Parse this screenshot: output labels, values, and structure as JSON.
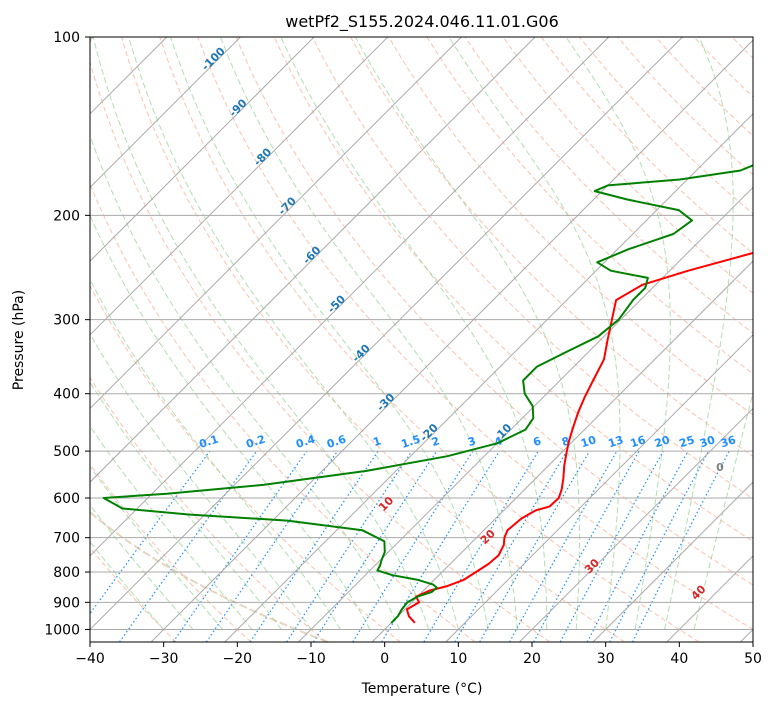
{
  "chart_data": {
    "type": "line",
    "title": "wetPf2_S155.2024.046.11.01.G06",
    "xlabel": "Temperature (°C)",
    "ylabel": "Pressure (hPa)",
    "xlim": [
      -40,
      50
    ],
    "ylim": [
      1050,
      100
    ],
    "y_scale": "log",
    "grid": true,
    "x_ticks": [
      -40,
      -30,
      -20,
      -10,
      0,
      10,
      20,
      30,
      40,
      50
    ],
    "x_tick_labels": [
      "−40",
      "−30",
      "−20",
      "−10",
      "0",
      "10",
      "20",
      "30",
      "40",
      "50"
    ],
    "y_ticks": [
      1000,
      900,
      800,
      700,
      600,
      500,
      400,
      300,
      200,
      100
    ],
    "y_tick_labels": [
      "1000",
      "900",
      "800",
      "700",
      "600",
      "500",
      "400",
      "300",
      "200",
      "100"
    ],
    "colors": {
      "temperature": "#ff0000",
      "dewpoint": "#008000",
      "isotherm": "#aaaaaa",
      "dry_adiabat": "#ff9f80",
      "moist_adiabat": "#8fd18f",
      "mixing_ratio": "#1f8fff",
      "lcl": "#d2b48c",
      "isotherm_label": "#1f77b4",
      "dry_adiabat_label": "#d62728",
      "moist_adiabat_label": "#7f7f7f"
    },
    "series": [
      {
        "key": "temperature",
        "points": [
          [
            3.2,
            975
          ],
          [
            1.5,
            950
          ],
          [
            0.3,
            925
          ],
          [
            1.0,
            900
          ],
          [
            -0.2,
            880
          ],
          [
            0.8,
            860
          ],
          [
            2.6,
            845
          ],
          [
            4.0,
            825
          ],
          [
            4.6,
            800
          ],
          [
            5.2,
            775
          ],
          [
            5.4,
            750
          ],
          [
            4.7,
            720
          ],
          [
            3.8,
            700
          ],
          [
            3.2,
            680
          ],
          [
            3.5,
            650
          ],
          [
            4.3,
            630
          ],
          [
            5.7,
            620
          ],
          [
            5.8,
            600
          ],
          [
            5.0,
            580
          ],
          [
            3.7,
            555
          ],
          [
            2.2,
            530
          ],
          [
            0.8,
            505
          ],
          [
            -0.6,
            480
          ],
          [
            -1.9,
            455
          ],
          [
            -3.2,
            430
          ],
          [
            -4.4,
            405
          ],
          [
            -5.5,
            380
          ],
          [
            -6.9,
            350
          ],
          [
            -9.0,
            325
          ],
          [
            -11.2,
            300
          ],
          [
            -13.3,
            278
          ],
          [
            -11.8,
            262
          ],
          [
            -7.5,
            248
          ],
          [
            -0.5,
            230
          ],
          [
            5.2,
            215
          ],
          [
            10.0,
            200
          ],
          [
            15.7,
            185
          ],
          [
            20.2,
            170
          ],
          [
            23.3,
            160
          ],
          [
            27.6,
            145
          ],
          [
            32.5,
            130
          ],
          [
            39.1,
            118
          ],
          [
            45.4,
            110
          ],
          [
            50.5,
            103
          ],
          [
            52.5,
            100
          ]
        ]
      },
      {
        "key": "dewpoint",
        "points": [
          [
            0.0,
            975
          ],
          [
            0.0,
            950
          ],
          [
            -0.4,
            925
          ],
          [
            -0.6,
            900
          ],
          [
            0.0,
            880
          ],
          [
            1.3,
            865
          ],
          [
            1.4,
            850
          ],
          [
            0.5,
            840
          ],
          [
            -2.2,
            825
          ],
          [
            -6.3,
            810
          ],
          [
            -9.0,
            795
          ],
          [
            -9.3,
            780
          ],
          [
            -9.8,
            765
          ],
          [
            -10.5,
            740
          ],
          [
            -12.0,
            710
          ],
          [
            -16.5,
            680
          ],
          [
            -28.0,
            655
          ],
          [
            -42.0,
            640
          ],
          [
            -52.0,
            625
          ],
          [
            -56.0,
            600
          ],
          [
            -48.0,
            590
          ],
          [
            -36.0,
            570
          ],
          [
            -24.0,
            540
          ],
          [
            -15.0,
            510
          ],
          [
            -10.0,
            485
          ],
          [
            -8.0,
            460
          ],
          [
            -8.5,
            440
          ],
          [
            -10.2,
            420
          ],
          [
            -13.0,
            400
          ],
          [
            -15.0,
            380
          ],
          [
            -15.0,
            360
          ],
          [
            -13.0,
            340
          ],
          [
            -10.8,
            320
          ],
          [
            -10.3,
            300
          ],
          [
            -11.0,
            278
          ],
          [
            -11.0,
            265
          ],
          [
            -12.0,
            255
          ],
          [
            -18.0,
            248
          ],
          [
            -21.0,
            240
          ],
          [
            -18.5,
            228
          ],
          [
            -14.5,
            215
          ],
          [
            -13.8,
            204
          ],
          [
            -17.0,
            196
          ],
          [
            -25.5,
            188
          ],
          [
            -31.0,
            182
          ],
          [
            -30.0,
            178
          ],
          [
            -21.0,
            174
          ],
          [
            -14.0,
            168
          ],
          [
            -12.5,
            163
          ],
          [
            -12.0,
            155
          ],
          [
            -10.0,
            148
          ],
          [
            -6.5,
            143
          ],
          [
            -3.0,
            138
          ],
          [
            2.5,
            130
          ],
          [
            5.3,
            122
          ],
          [
            4.5,
            112
          ],
          [
            0.5,
            103
          ],
          [
            -2.5,
            100
          ]
        ]
      }
    ],
    "isotherm_labels": [
      "-100",
      "-90",
      "-80",
      "-70",
      "-60",
      "-50",
      "-40",
      "-30",
      "-20",
      "-10"
    ],
    "mixing_ratio_labels": [
      "0.1",
      "0.2",
      "0.4",
      "0.6",
      "1",
      "1.5",
      "2",
      "3",
      "4",
      "6",
      "8",
      "10",
      "13",
      "16",
      "20",
      "25",
      "30",
      "36"
    ],
    "dry_adiabat_labels": [
      "10",
      "20",
      "30",
      "40"
    ],
    "moist_adiabat_labels": [
      "0"
    ]
  }
}
